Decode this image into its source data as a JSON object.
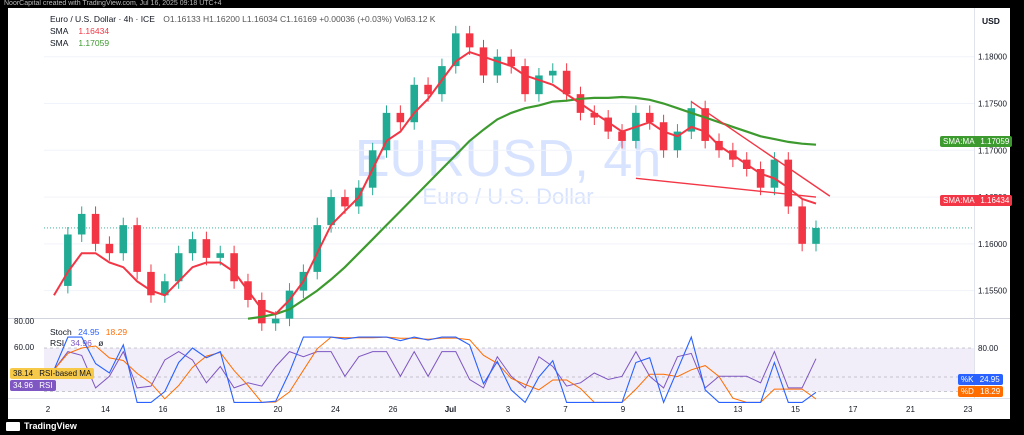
{
  "header": {
    "top_caption": "NoorCapital created with TradingView.com, Jul 16, 2025 09:18 UTC+4",
    "symbol": "Euro / U.S. Dollar · 4h · ICE",
    "ohlc": "O1.16133 H1.16200 L1.16034 C1.16169 +0.00036 (+0.03%) Vol63.12 K",
    "sma1_label": "SMA",
    "sma1_value": "1.16434",
    "sma2_label": "SMA",
    "sma2_value": "1.17059",
    "currency": "USD"
  },
  "watermark": {
    "main": "EURUSD, 4h",
    "sub": "Euro / U.S. Dollar"
  },
  "price_axis": {
    "ticks": [
      "1.18000",
      "1.17500",
      "1.17000",
      "1.16500",
      "1.16000",
      "1.15500"
    ],
    "tags": [
      {
        "label": "SMA:MA",
        "value": "1.17059"
      },
      {
        "label": "SMA:MA",
        "value": "1.16434"
      }
    ]
  },
  "time_axis": {
    "labels": [
      "2",
      "14",
      "16",
      "18",
      "20",
      "24",
      "26",
      "Jul",
      "3",
      "7",
      "9",
      "11",
      "13",
      "15",
      "17",
      "21",
      "23"
    ]
  },
  "oscillator": {
    "left_axis": [
      "80.00",
      "60.00",
      "40.00"
    ],
    "stoch_label": "Stoch",
    "stoch_k": "24.95",
    "stoch_d": "18.29",
    "rsi_label": "RSI",
    "rsi_value": "34.96",
    "rsi_ma_label": "RSI-based MA",
    "rsi_ma_value": "38.14",
    "right_axis": [
      "80.00",
      "40.00",
      "20.00"
    ],
    "right_tags": [
      {
        "label": "%K",
        "value": "24.95"
      },
      {
        "label": "%D",
        "value": "18.29"
      }
    ],
    "extra_left": {
      "a": "34.96",
      "b": "ø"
    }
  },
  "footer": {
    "brand": "TradingView"
  },
  "chart_data": {
    "type": "candlestick",
    "ylim": [
      1.1525,
      1.1835
    ],
    "colors": {
      "up": "#22ab94",
      "down": "#f23645",
      "sma_fast": "#f23645",
      "sma_slow": "#3d9a2e",
      "trend": "#f23645",
      "rsi": "#7e57c2",
      "stoch_k": "#2962ff",
      "stoch_d": "#ff6d00"
    },
    "close_path": [
      1.1555,
      1.161,
      1.1632,
      1.16,
      1.159,
      1.162,
      1.157,
      1.1545,
      1.156,
      1.159,
      1.1605,
      1.1585,
      1.159,
      1.156,
      1.154,
      1.1515,
      1.152,
      1.155,
      1.157,
      1.162,
      1.165,
      1.164,
      1.166,
      1.17,
      1.174,
      1.173,
      1.177,
      1.176,
      1.179,
      1.1825,
      1.181,
      1.178,
      1.18,
      1.179,
      1.176,
      1.178,
      1.1785,
      1.176,
      1.174,
      1.1735,
      1.172,
      1.171,
      1.174,
      1.173,
      1.17,
      1.172,
      1.1745,
      1.171,
      1.17,
      1.169,
      1.168,
      1.166,
      1.169,
      1.164,
      1.16,
      1.1617
    ],
    "sma_fast_path": [
      1.1545,
      1.157,
      1.159,
      1.159,
      1.158,
      1.1575,
      1.156,
      1.155,
      1.1545,
      1.156,
      1.1575,
      1.158,
      1.158,
      1.157,
      1.155,
      1.153,
      1.1525,
      1.154,
      1.156,
      1.159,
      1.162,
      1.1635,
      1.165,
      1.168,
      1.171,
      1.172,
      1.174,
      1.1755,
      1.1775,
      1.1795,
      1.1805,
      1.18,
      1.1795,
      1.179,
      1.178,
      1.1775,
      1.177,
      1.176,
      1.175,
      1.174,
      1.173,
      1.172,
      1.1725,
      1.173,
      1.172,
      1.1715,
      1.1725,
      1.172,
      1.1705,
      1.1695,
      1.1685,
      1.1675,
      1.167,
      1.166,
      1.1648,
      1.1643
    ],
    "sma_slow_path": [
      null,
      null,
      null,
      null,
      null,
      null,
      null,
      null,
      null,
      null,
      null,
      null,
      null,
      null,
      1.152,
      1.1522,
      1.1525,
      1.153,
      1.154,
      1.155,
      1.1562,
      1.1575,
      1.159,
      1.1605,
      1.162,
      1.1635,
      1.165,
      1.1665,
      1.168,
      1.1695,
      1.171,
      1.1722,
      1.1733,
      1.174,
      1.1745,
      1.1748,
      1.1752,
      1.1753,
      1.1755,
      1.1756,
      1.1756,
      1.1757,
      1.1756,
      1.1754,
      1.175,
      1.1745,
      1.174,
      1.1735,
      1.173,
      1.1725,
      1.172,
      1.1715,
      1.1712,
      1.1709,
      1.1707,
      1.1706
    ],
    "trendlines": [
      {
        "from": [
          46,
          1.1752
        ],
        "to": [
          56,
          1.1651
        ]
      },
      {
        "from": [
          42,
          1.167
        ],
        "to": [
          55,
          1.165
        ]
      }
    ]
  }
}
